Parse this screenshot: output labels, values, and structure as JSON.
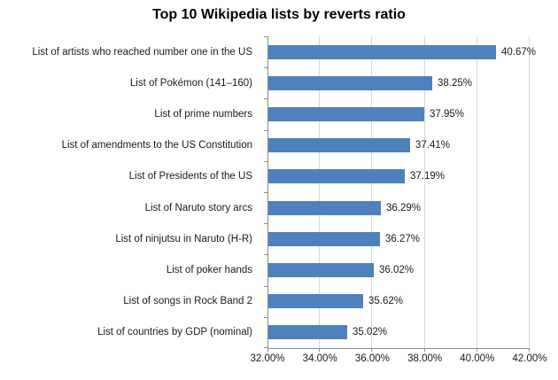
{
  "title": "Top 10 Wikipedia lists by reverts ratio",
  "chart_data": {
    "type": "bar",
    "orientation": "horizontal",
    "title": "Top 10 Wikipedia lists by reverts ratio",
    "categories": [
      "List of artists who reached number one in the US",
      "List of Pokémon (141–160)",
      "List of prime numbers",
      "List of amendments to the US Constitution",
      "List of Presidents of the US",
      "List of Naruto story arcs",
      "List of ninjutsu in Naruto (H-R)",
      "List of poker hands",
      "List of songs in Rock Band 2",
      "List of countries by GDP (nominal)"
    ],
    "values": [
      40.67,
      38.25,
      37.95,
      37.41,
      37.19,
      36.29,
      36.27,
      36.02,
      35.62,
      35.02
    ],
    "value_labels": [
      "40.67%",
      "38.25%",
      "37.95%",
      "37.41%",
      "37.19%",
      "36.29%",
      "36.27%",
      "36.02%",
      "35.62%",
      "35.02%"
    ],
    "xlabel": "",
    "ylabel": "",
    "xlim": [
      32,
      42
    ],
    "x_tick_values": [
      32,
      34,
      36,
      38,
      40,
      42
    ],
    "x_tick_labels": [
      "32.00%",
      "34.00%",
      "36.00%",
      "38.00%",
      "40.00%",
      "42.00%"
    ],
    "grid": true,
    "legend": "none",
    "colors": {
      "bar_fill": "#4F81BD",
      "axis_line": "#8C8C8C",
      "gridline": "#D9D9D9",
      "text": "#1a1a1a",
      "title_text": "#000000",
      "background": "#ffffff"
    }
  }
}
